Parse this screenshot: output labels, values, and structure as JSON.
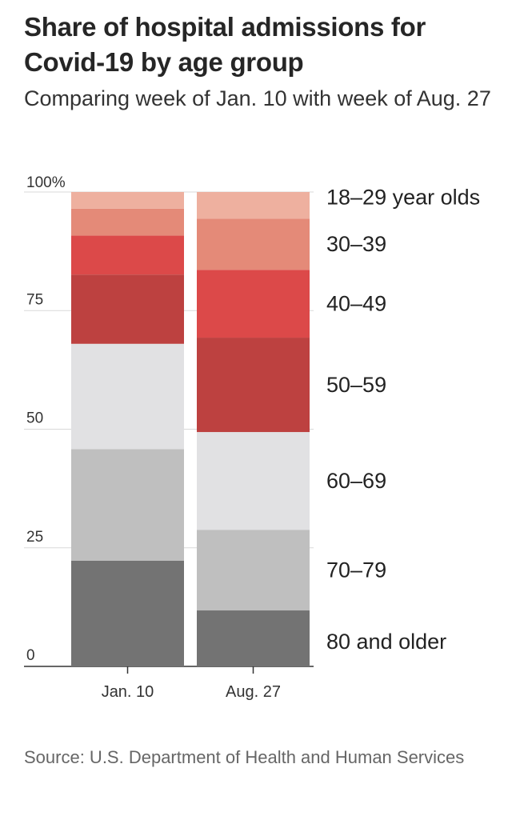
{
  "header": {
    "title": "Share of hospital admissions for Covid-19 by age group",
    "subtitle": "Comparing week of Jan. 10 with week of Aug. 27"
  },
  "footer": {
    "source": "Source: U.S. Department of Health and Human Services"
  },
  "chart_data": {
    "type": "bar",
    "stacked": true,
    "title": "Share of hospital admissions for Covid-19 by age group",
    "subtitle": "Comparing week of Jan. 10 with week of Aug. 27",
    "categories": [
      "Jan. 10",
      "Aug. 27"
    ],
    "ylim": [
      0,
      100
    ],
    "yticks": [
      0,
      25,
      50,
      75,
      100
    ],
    "ytick_labels": [
      "0",
      "25",
      "50",
      "75",
      "100%"
    ],
    "grid": true,
    "legend_position": "right",
    "series": [
      {
        "name": "80 and older",
        "color": "#737373",
        "values": [
          22.3,
          11.8
        ]
      },
      {
        "name": "70–79",
        "color": "#bfbfbf",
        "values": [
          23.5,
          17.0
        ]
      },
      {
        "name": "60–69",
        "color": "#e1e1e3",
        "values": [
          22.2,
          20.6
        ]
      },
      {
        "name": "50–59",
        "color": "#bd4140",
        "values": [
          14.6,
          19.9
        ]
      },
      {
        "name": "40–49",
        "color": "#dc4949",
        "values": [
          8.2,
          14.3
        ]
      },
      {
        "name": "30–39",
        "color": "#e48a78",
        "values": [
          5.7,
          10.8
        ]
      },
      {
        "name": "18–29 year olds",
        "color": "#eeb09f",
        "values": [
          3.5,
          5.6
        ]
      }
    ]
  }
}
